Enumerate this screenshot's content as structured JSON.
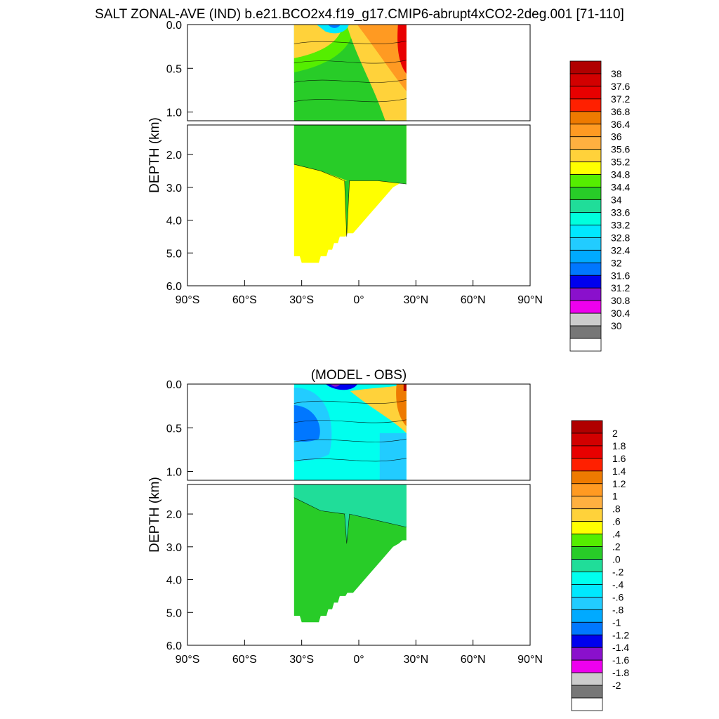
{
  "figure_title": "SALT ZONAL-AVE (IND) b.e21.BCO2x4.f19_g17.CMIP6-abrupt4xCO2-2deg.001 [71-110]",
  "chart_data": [
    {
      "type": "heatmap",
      "title": "",
      "ylabel": "DEPTH (km)",
      "xlabel": "",
      "x_ticks": [
        "90°S",
        "60°S",
        "30°S",
        "0°",
        "30°N",
        "60°N",
        "90°N"
      ],
      "xlim": [
        -90,
        90
      ],
      "y_ticks_upper": [
        "0.0",
        "0.5",
        "1.0"
      ],
      "y_ticks_lower": [
        "2.0",
        "3.0",
        "4.0",
        "5.0",
        "6.0"
      ],
      "ylim_upper_km": [
        0,
        1.1
      ],
      "ylim_lower_km": [
        1.1,
        6.0
      ],
      "data_extent_lat": [
        -34,
        25
      ],
      "colorbar_labels": [
        "38",
        "37.6",
        "37.2",
        "36.8",
        "36.4",
        "36",
        "35.6",
        "35.2",
        "34.8",
        "34.4",
        "34",
        "33.6",
        "33.2",
        "32.8",
        "32.4",
        "32",
        "31.6",
        "31.2",
        "30.8",
        "30.4",
        "30"
      ],
      "colorbar_colors": [
        "#b00000",
        "#d20000",
        "#e80000",
        "#ff2000",
        "#ee7a00",
        "#ff9a22",
        "#ffb040",
        "#ffd23a",
        "#ffff00",
        "#55ee00",
        "#28cc28",
        "#20dd99",
        "#00ffdd",
        "#00e8ff",
        "#22ccff",
        "#00aaff",
        "#0077ff",
        "#0000ee",
        "#8a10cc",
        "#ee00ee",
        "#cccccc",
        "#777777",
        "#ffffff"
      ],
      "fields": {
        "upper_bg": "#28cc28",
        "lower_upper": "#28cc28",
        "lower_bottom": "#ffff00",
        "coastal_high": "#e80000",
        "coastal_mid": "#ff9a22",
        "coastal_low": "#ffd23a",
        "fresh_core": "#00e8ff",
        "fresh_inner": "#0077ff",
        "top_south": "#ffd23a",
        "top_green": "#55ee00"
      }
    },
    {
      "type": "heatmap",
      "title": "(MODEL - OBS)",
      "ylabel": "DEPTH (km)",
      "xlabel": "",
      "x_ticks": [
        "90°S",
        "60°S",
        "30°S",
        "0°",
        "30°N",
        "60°N",
        "90°N"
      ],
      "xlim": [
        -90,
        90
      ],
      "y_ticks_upper": [
        "0.0",
        "0.5",
        "1.0"
      ],
      "y_ticks_lower": [
        "2.0",
        "3.0",
        "4.0",
        "5.0",
        "6.0"
      ],
      "ylim_upper_km": [
        0,
        1.1
      ],
      "ylim_lower_km": [
        1.1,
        6.0
      ],
      "data_extent_lat": [
        -34,
        25
      ],
      "colorbar_labels": [
        "2",
        "1.8",
        "1.6",
        "1.4",
        "1.2",
        "1",
        ".8",
        ".6",
        ".4",
        ".2",
        ".0",
        "-.2",
        "-.4",
        "-.6",
        "-.8",
        "-1",
        "-1.2",
        "-1.4",
        "-1.6",
        "-1.8",
        "-2"
      ],
      "colorbar_colors": [
        "#b00000",
        "#d20000",
        "#e80000",
        "#ff2000",
        "#ee7a00",
        "#ff9a22",
        "#ffb040",
        "#ffd23a",
        "#ffff00",
        "#55ee00",
        "#28cc28",
        "#20dd99",
        "#00ffee",
        "#00e8ff",
        "#22ccff",
        "#00aaff",
        "#0077ff",
        "#0000ee",
        "#8a10cc",
        "#ee00ee",
        "#cccccc",
        "#777777",
        "#ffffff"
      ],
      "fields": {
        "upper_bg": "#00ffee",
        "band_light": "#22e8ff",
        "band_mid": "#22ccff",
        "band_deep": "#0077ff",
        "lower_upper": "#20dd99",
        "lower_bottom": "#28cc28",
        "coastal_high": "#b00000",
        "coastal_mid": "#ee7a00",
        "coastal_low": "#ffd23a",
        "fresh_core": "#0000ee",
        "fresh_inner": "#8a10cc"
      }
    }
  ]
}
